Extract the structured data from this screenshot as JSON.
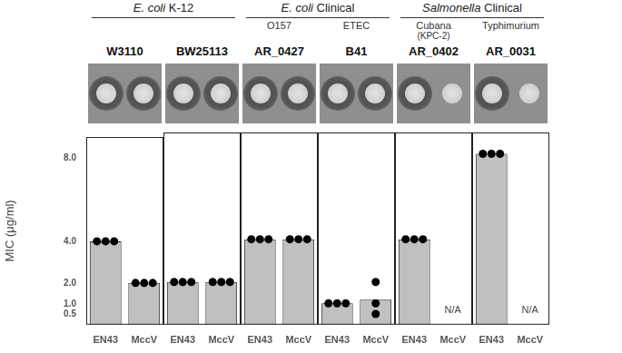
{
  "chart_data": [
    {
      "type": "bar",
      "group": "E. coli K-12",
      "title": "W3110",
      "ylabel": "MIC (μg/ml)",
      "categories": [
        "EN43",
        "MccV"
      ],
      "values": [
        4,
        2
      ],
      "replicates": [
        [
          4,
          4,
          4
        ],
        [
          2,
          2,
          2
        ]
      ],
      "color": "#c0c0c0",
      "grid": false,
      "ylim": [
        0,
        9
      ],
      "yticks": [
        0.5,
        {
          "value": 1,
          "label": "1.0"
        },
        {
          "value": 2,
          "label": "2.0"
        },
        {
          "value": 4,
          "label": "4.0"
        },
        {
          "value": 8,
          "label": "8.0"
        }
      ]
    },
    {
      "type": "bar",
      "group": "E. coli K-12",
      "title": "BW25113",
      "categories": [
        "EN43",
        "MccV"
      ],
      "values": [
        2,
        2
      ],
      "replicates": [
        [
          2,
          2,
          2
        ],
        [
          2,
          2,
          2
        ]
      ],
      "color": "#c0c0c0",
      "grid": false,
      "tick_labels": "x",
      "ylim": [
        0,
        9
      ],
      "yticks": [
        0.5,
        {
          "value": 1,
          "label": "1.0"
        },
        {
          "value": 2,
          "label": "2.0"
        },
        {
          "value": 4,
          "label": "4.0"
        },
        {
          "value": 8,
          "label": "8.0"
        }
      ]
    },
    {
      "type": "bar",
      "group": "E. coli Clinical",
      "subtitle": [
        "O157"
      ],
      "title": "AR_0427",
      "categories": [
        "EN43",
        "MccV"
      ],
      "values": [
        4,
        4
      ],
      "replicates": [
        [
          4,
          4,
          4
        ],
        [
          4,
          4,
          4
        ]
      ],
      "color": "#c0c0c0",
      "grid": false,
      "tick_labels": "x",
      "ylim": [
        0,
        9
      ],
      "yticks": [
        0.5,
        {
          "value": 1,
          "label": "1.0"
        },
        {
          "value": 2,
          "label": "2.0"
        },
        {
          "value": 4,
          "label": "4.0"
        },
        {
          "value": 8,
          "label": "8.0"
        }
      ]
    },
    {
      "type": "bar",
      "group": "E. coli Clinical",
      "subtitle": [
        "ETEC"
      ],
      "title": "B41",
      "categories": [
        "EN43",
        "MccV"
      ],
      "values": [
        1,
        1.17
      ],
      "replicates": [
        [
          1,
          1,
          1
        ],
        [
          2,
          1,
          0.5
        ]
      ],
      "color": "#c0c0c0",
      "grid": false,
      "tick_labels": "x",
      "ylim": [
        0,
        9
      ],
      "yticks": [
        0.5,
        {
          "value": 1,
          "label": "1.0"
        },
        {
          "value": 2,
          "label": "2.0"
        },
        {
          "value": 4,
          "label": "4.0"
        },
        {
          "value": 8,
          "label": "8.0"
        }
      ]
    },
    {
      "type": "bar",
      "group": "Salmonella Clinical",
      "subtitle": [
        "Cubana",
        "(KPC-2)"
      ],
      "title": "AR_0402",
      "categories": [
        "EN43",
        "MccV"
      ],
      "values": [
        4,
        null
      ],
      "value_labels": [
        null,
        "N/A"
      ],
      "replicates": [
        [
          4,
          4,
          4
        ],
        null
      ],
      "color": "#c0c0c0",
      "grid": false,
      "tick_labels": "x",
      "ylim": [
        0,
        9
      ],
      "yticks": [
        0.5,
        {
          "value": 1,
          "label": "1.0"
        },
        {
          "value": 2,
          "label": "2.0"
        },
        {
          "value": 4,
          "label": "4.0"
        },
        {
          "value": 8,
          "label": "8.0"
        }
      ]
    },
    {
      "type": "bar",
      "group": "Salmonella Clinical",
      "subtitle": [
        "Typhimurium"
      ],
      "title": "AR_0031",
      "categories": [
        "EN43",
        "MccV"
      ],
      "values": [
        8,
        null
      ],
      "value_labels": [
        null,
        "N/A"
      ],
      "replicates": [
        [
          8,
          8,
          8
        ],
        null
      ],
      "color": "#c0c0c0",
      "grid": false,
      "tick_labels": "x",
      "ylim": [
        0,
        9
      ],
      "yticks": [
        0.5,
        {
          "value": 1,
          "label": "1.0"
        },
        {
          "value": 2,
          "label": "2.0"
        },
        {
          "value": 4,
          "label": "4.0"
        },
        {
          "value": 8,
          "label": "8.0"
        }
      ]
    }
  ]
}
